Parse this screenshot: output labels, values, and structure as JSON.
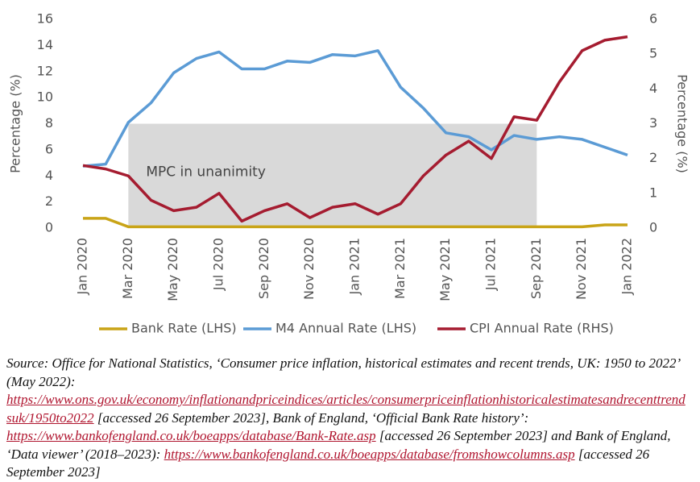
{
  "chart_data": {
    "type": "line",
    "categories": [
      "Jan 2020",
      null,
      "Mar 2020",
      null,
      "May 2020",
      null,
      "Jul 2020",
      null,
      "Sep 2020",
      null,
      "Nov 2020",
      null,
      "Jan 2021",
      null,
      "Mar 2021",
      null,
      "May 2021",
      null,
      "Jul 2021",
      null,
      "Sep 2021",
      null,
      "Nov 2021",
      null,
      "Jan 2022"
    ],
    "series": [
      {
        "name": "Bank Rate (LHS)",
        "color": "#c9a417",
        "axis": "y",
        "values": [
          0.75,
          0.75,
          0.1,
          0.1,
          0.1,
          0.1,
          0.1,
          0.1,
          0.1,
          0.1,
          0.1,
          0.1,
          0.1,
          0.1,
          0.1,
          0.1,
          0.1,
          0.1,
          0.1,
          0.1,
          0.1,
          0.1,
          0.1,
          0.25,
          0.25
        ]
      },
      {
        "name": "M4 Annual Rate (LHS)",
        "color": "#5b9bd5",
        "axis": "y",
        "values": [
          4.75,
          4.9,
          8.1,
          9.6,
          11.9,
          13.0,
          13.5,
          12.2,
          12.2,
          12.8,
          12.7,
          13.3,
          13.2,
          13.6,
          10.8,
          9.2,
          7.3,
          7.0,
          6.0,
          7.1,
          6.8,
          7.0,
          6.8,
          6.2,
          5.6
        ]
      },
      {
        "name": "CPI Annual Rate (RHS)",
        "color": "#a51c30",
        "axis": "y2",
        "values": [
          1.8,
          1.7,
          1.5,
          0.8,
          0.5,
          0.6,
          1.0,
          0.2,
          0.5,
          0.7,
          0.3,
          0.6,
          0.7,
          0.4,
          0.7,
          1.5,
          2.1,
          2.5,
          2.0,
          3.2,
          3.1,
          4.2,
          5.1,
          5.4,
          5.5
        ]
      }
    ],
    "ylabel": "Percentage (%)",
    "y2label": "Percentage (%)",
    "ylim": [
      0,
      16
    ],
    "yticks": [
      0,
      2,
      4,
      6,
      8,
      10,
      12,
      14,
      16
    ],
    "y2lim": [
      0,
      6
    ],
    "y2ticks": [
      0,
      1,
      2,
      3,
      4,
      5,
      6
    ],
    "grid": false,
    "shade": {
      "label": "MPC in unanimity",
      "from": "Mar 2020",
      "to": "Sep 2021",
      "top": 8,
      "color": "#d9d9d9"
    },
    "legend": "bottom"
  },
  "source": [
    "Source: Office for National Statistics, ‘Consumer price inflation, historical estimates and recent trends, UK: 1950 to 2022’ (May 2022): ",
    {
      "link": "https://www.ons.gov.uk/economy/inflationandpriceindices/articles/consumerpriceinflationhistoricalestimatesandrecenttrendsuk/1950to2022"
    },
    " [accessed 26 September 2023], Bank of England, ‘Official Bank Rate history’: ",
    {
      "link": "https://www.bankofengland.co.uk/boeapps/database/Bank-Rate.asp"
    },
    " [accessed 26 September 2023] and Bank of England, ‘Data viewer’ (2018–2023): ",
    {
      "link": "https://www.bankofengland.co.uk/boeapps/database/fromshowcolumns.asp"
    },
    " [accessed 26 September 2023]"
  ]
}
